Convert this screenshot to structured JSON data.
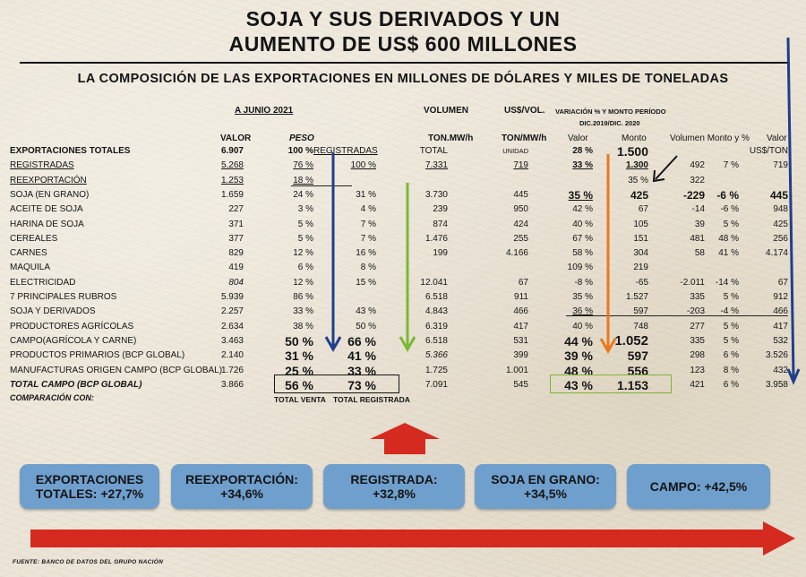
{
  "title": {
    "line1": "SOJA Y SUS DERIVADOS Y UN",
    "line2": "AUMENTO DE US$ 600 MILLONES",
    "subtitle": "LA COMPOSICIÓN DE LAS EXPORTACIONES EN MILLONES DE DÓLARES Y MILES DE TONELADAS"
  },
  "headers": {
    "period": "A JUNIO 2021",
    "valor": "VALOR",
    "peso": "PESO",
    "registradas": "REGISTRADAS",
    "volumen": "VOLUMEN",
    "ton_mwh": "TON.MW/h",
    "usd_vol": "US$/VOL.",
    "ton_mwh2": "TON/MW/h",
    "variacion": "VARIACIÓN % Y MONTO PERÍODO",
    "variacion_period": "DIC.2019/DIC. 2020",
    "var_valor": "Valor",
    "var_monto": "Monto",
    "vol_monto": "Volumen Monto y %",
    "valor_usd": "Valor",
    "usd_ton": "US$/TON"
  },
  "rows": [
    {
      "label": "EXPORTACIONES TOTALES",
      "valor": "6.907",
      "peso": "100 %",
      "reg": "REGISTRADAS",
      "vol": "TOTAL",
      "usdv": "UNIDAD",
      "var": "28 %",
      "monto": "1.500",
      "vmonto": "",
      "vpct": "",
      "usdton": "US$/TON"
    },
    {
      "label": "REGISTRADAS",
      "valor": "5.268",
      "peso": "76 %",
      "reg": "100 %",
      "vol": "7.331",
      "usdv": "719",
      "var": "33 %",
      "monto": "1.300",
      "vmonto": "492",
      "vpct": "7 %",
      "usdton": "719"
    },
    {
      "label": "REEXPORTACIÓN",
      "valor": "1.253",
      "peso": "18 %",
      "reg": "",
      "vol": "",
      "usdv": "",
      "var": "",
      "monto": "35 %",
      "vmonto": "322",
      "vpct": "",
      "usdton": ""
    },
    {
      "label": "SOJA (EN GRANO)",
      "valor": "1.659",
      "peso": "24 %",
      "reg": "31 %",
      "vol": "3.730",
      "usdv": "445",
      "var": "35 %",
      "monto": "425",
      "vmonto": "-229",
      "vpct": "-6 %",
      "usdton": "445"
    },
    {
      "label": "ACEITE DE SOJA",
      "valor": "227",
      "peso": "3 %",
      "reg": "4 %",
      "vol": "239",
      "usdv": "950",
      "var": "42 %",
      "monto": "67",
      "vmonto": "-14",
      "vpct": "-6 %",
      "usdton": "948"
    },
    {
      "label": "HARINA DE SOJA",
      "valor": "371",
      "peso": "5 %",
      "reg": "7 %",
      "vol": "874",
      "usdv": "424",
      "var": "40 %",
      "monto": "105",
      "vmonto": "39",
      "vpct": "5 %",
      "usdton": "425"
    },
    {
      "label": "CEREALES",
      "valor": "377",
      "peso": "5 %",
      "reg": "7 %",
      "vol": "1.476",
      "usdv": "255",
      "var": "67 %",
      "monto": "151",
      "vmonto": "481",
      "vpct": "48 %",
      "usdton": "256"
    },
    {
      "label": "CARNES",
      "valor": "829",
      "peso": "12 %",
      "reg": "16 %",
      "vol": "199",
      "usdv": "4.166",
      "var": "58 %",
      "monto": "304",
      "vmonto": "58",
      "vpct": "41 %",
      "usdton": "4.174"
    },
    {
      "label": "MAQUILA",
      "valor": "419",
      "peso": "6 %",
      "reg": "8 %",
      "vol": "",
      "usdv": "",
      "var": "109 %",
      "monto": "219",
      "vmonto": "",
      "vpct": "",
      "usdton": ""
    },
    {
      "label": "ELECTRICIDAD",
      "valor": "804",
      "peso": "12 %",
      "reg": "15 %",
      "vol": "12.041",
      "usdv": "67",
      "var": "-8 %",
      "monto": "-65",
      "vmonto": "-2.011",
      "vpct": "-14 %",
      "usdton": "67"
    },
    {
      "label": "7 PRINCIPALES RUBROS",
      "valor": "5.939",
      "peso": "86 %",
      "reg": "",
      "vol": "6.518",
      "usdv": "911",
      "var": "35 %",
      "monto": "1.527",
      "vmonto": "335",
      "vpct": "5 %",
      "usdton": "912"
    },
    {
      "label": "SOJA Y DERIVADOS",
      "valor": "2.257",
      "peso": "33 %",
      "reg": "43 %",
      "vol": "4.843",
      "usdv": "466",
      "var": "36 %",
      "monto": "597",
      "vmonto": "-203",
      "vpct": "-4 %",
      "usdton": "466"
    },
    {
      "label": "PRODUCTORES AGRÍCOLAS",
      "valor": "2.634",
      "peso": "38 %",
      "reg": "50 %",
      "vol": "6.319",
      "usdv": "417",
      "var": "40 %",
      "monto": "748",
      "vmonto": "277",
      "vpct": "5 %",
      "usdton": "417"
    },
    {
      "label": "CAMPO(AGRÍCOLA Y CARNE)",
      "valor": "3.463",
      "peso": "50 %",
      "reg": "66 %",
      "vol": "6.518",
      "usdv": "531",
      "var": "44 %",
      "monto": "1.052",
      "vmonto": "335",
      "vpct": "5 %",
      "usdton": "532"
    },
    {
      "label": "PRODUCTOS PRIMARIOS (BCP GLOBAL)",
      "valor": "2.140",
      "peso": "31 %",
      "reg": "41 %",
      "vol": "5.366",
      "usdv": "399",
      "var": "39 %",
      "monto": "597",
      "vmonto": "298",
      "vpct": "6 %",
      "usdton": "3.526"
    },
    {
      "label": "MANUFACTURAS ORIGEN CAMPO (BCP GLOBAL)",
      "valor": "1.726",
      "peso": "25 %",
      "reg": "33 %",
      "vol": "1.725",
      "usdv": "1.001",
      "var": "48 %",
      "monto": "556",
      "vmonto": "123",
      "vpct": "8 %",
      "usdton": "432"
    },
    {
      "label": "TOTAL CAMPO (BCP GLOBAL)",
      "valor": "3.866",
      "peso": "56 %",
      "reg": "73 %",
      "vol": "7.091",
      "usdv": "545",
      "var": "43 %",
      "monto": "1.153",
      "vmonto": "421",
      "vpct": "6 %",
      "usdton": "3.958"
    }
  ],
  "footer": {
    "comparacion": "COMPARACIÓN CON:",
    "total_venta": "TOTAL VENTA",
    "total_registrada": "TOTAL REGISTRADA"
  },
  "summary": [
    "EXPORTACIONES TOTALES: +27,7%",
    "REEXPORTACIÓN: +34,6%",
    "REGISTRADA: +32,8%",
    "SOJA EN GRANO: +34,5%",
    "CAMPO: +42,5%"
  ],
  "source": "FUENTE: BANCO DE DATOS DEL GRUPO NACIÓN",
  "colors": {
    "blue_arrow": "#1f3f8c",
    "green_arrow": "#7ab833",
    "orange_arrow": "#e8781e",
    "red_arrow": "#d42a20",
    "summary_box": "#6f9fcd"
  }
}
